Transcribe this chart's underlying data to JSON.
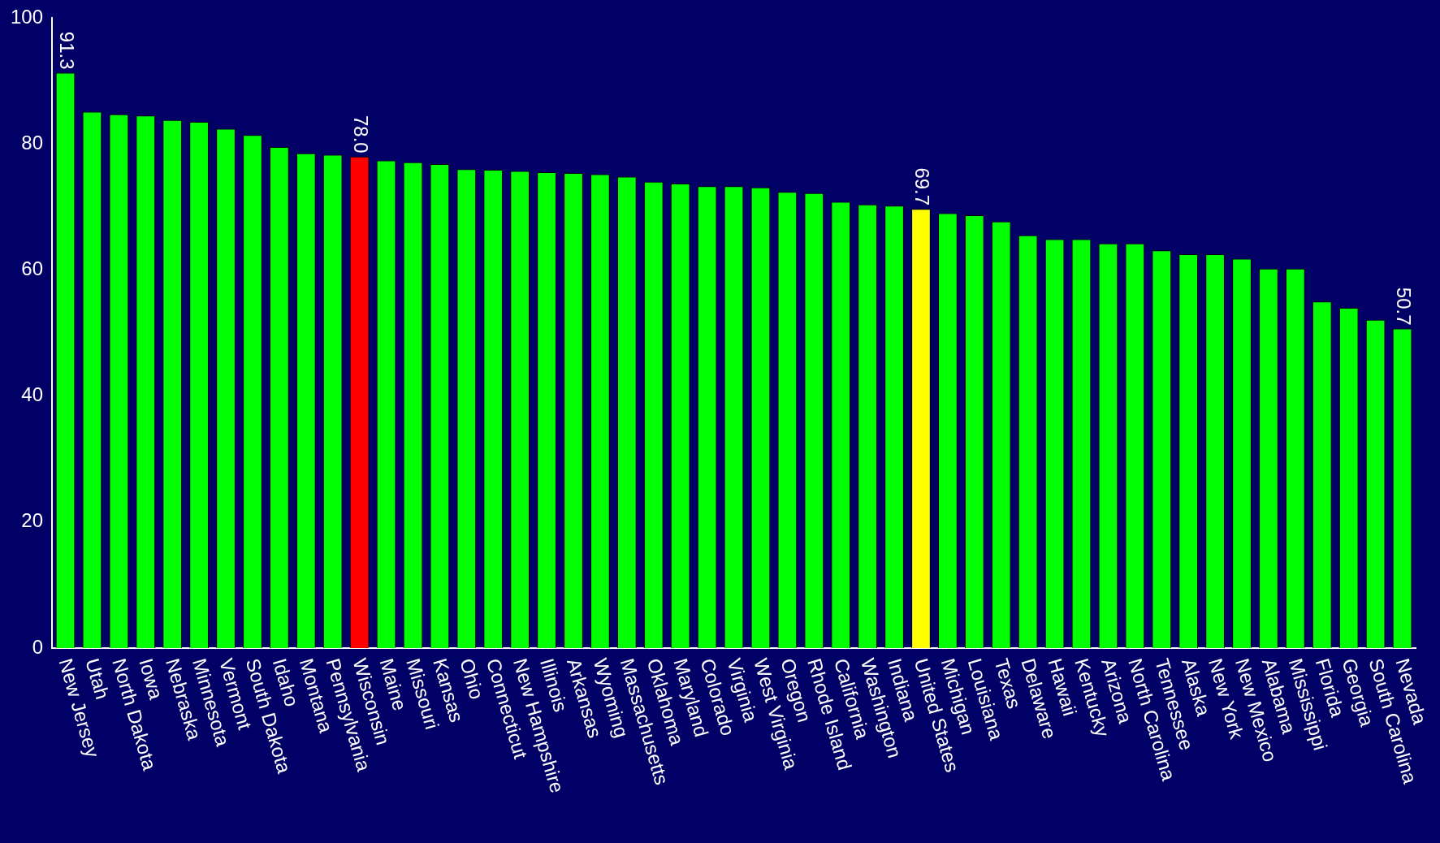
{
  "chart_data": {
    "type": "bar",
    "categories": [
      "New Jersey",
      "Utah",
      "North Dakota",
      "Iowa",
      "Nebraska",
      "Minnesota",
      "Vermont",
      "South Dakota",
      "Idaho",
      "Montana",
      "Pennsylvania",
      "Wisconsin",
      "Maine",
      "Missouri",
      "Kansas",
      "Ohio",
      "Connecticut",
      "New Hampshire",
      "Illinois",
      "Arkansas",
      "Wyoming",
      "Massachusetts",
      "Oklahoma",
      "Maryland",
      "Colorado",
      "Virginia",
      "West Virginia",
      "Oregon",
      "Rhode Island",
      "California",
      "Washington",
      "Indiana",
      "United States",
      "Michigan",
      "Louisiana",
      "Texas",
      "Delaware",
      "Hawaii",
      "Kentucky",
      "Arizona",
      "North Carolina",
      "Tennessee",
      "Alaska",
      "New York",
      "New Mexico",
      "Alabama",
      "Mississippi",
      "Florida",
      "Georgia",
      "South Carolina",
      "Nevada"
    ],
    "values": [
      91.3,
      85.1,
      84.7,
      84.5,
      83.8,
      83.5,
      82.4,
      81.4,
      79.5,
      78.5,
      78.3,
      78.0,
      77.4,
      77.1,
      76.8,
      76.0,
      75.9,
      75.7,
      75.5,
      75.4,
      75.2,
      74.8,
      74.0,
      73.7,
      73.3,
      73.3,
      73.1,
      72.4,
      72.2,
      70.8,
      70.4,
      70.2,
      69.7,
      69.0,
      68.7,
      67.7,
      65.5,
      64.9,
      64.9,
      64.2,
      64.2,
      63.1,
      62.5,
      62.5,
      61.8,
      60.2,
      60.2,
      55.0,
      54.0,
      52.1,
      50.7
    ],
    "colors": [
      "#00ff00",
      "#00ff00",
      "#00ff00",
      "#00ff00",
      "#00ff00",
      "#00ff00",
      "#00ff00",
      "#00ff00",
      "#00ff00",
      "#00ff00",
      "#00ff00",
      "#ff0000",
      "#00ff00",
      "#00ff00",
      "#00ff00",
      "#00ff00",
      "#00ff00",
      "#00ff00",
      "#00ff00",
      "#00ff00",
      "#00ff00",
      "#00ff00",
      "#00ff00",
      "#00ff00",
      "#00ff00",
      "#00ff00",
      "#00ff00",
      "#00ff00",
      "#00ff00",
      "#00ff00",
      "#00ff00",
      "#00ff00",
      "#ffff00",
      "#00ff00",
      "#00ff00",
      "#00ff00",
      "#00ff00",
      "#00ff00",
      "#00ff00",
      "#00ff00",
      "#00ff00",
      "#00ff00",
      "#00ff00",
      "#00ff00",
      "#00ff00",
      "#00ff00",
      "#00ff00",
      "#00ff00",
      "#00ff00",
      "#00ff00",
      "#00ff00"
    ],
    "value_labels": [
      "91.3",
      null,
      null,
      null,
      null,
      null,
      null,
      null,
      null,
      null,
      null,
      "78.0",
      null,
      null,
      null,
      null,
      null,
      null,
      null,
      null,
      null,
      null,
      null,
      null,
      null,
      null,
      null,
      null,
      null,
      null,
      null,
      null,
      "69.7",
      null,
      null,
      null,
      null,
      null,
      null,
      null,
      null,
      null,
      null,
      null,
      null,
      null,
      null,
      null,
      null,
      null,
      "50.7"
    ],
    "ylim": [
      0,
      100
    ],
    "yticks": [
      0,
      20,
      40,
      60,
      80,
      100
    ],
    "grid": false,
    "legend": false
  }
}
